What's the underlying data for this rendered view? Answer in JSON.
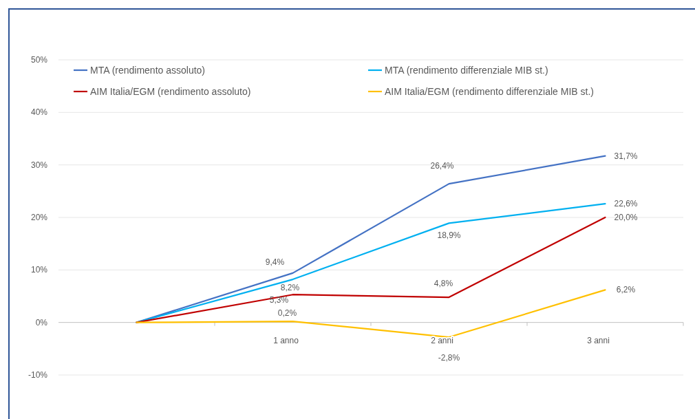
{
  "chart_data": {
    "type": "line",
    "categories": [
      null,
      "1 anno",
      "2 anni",
      "3 anni"
    ],
    "ylim": [
      -10,
      50
    ],
    "yticks": [
      {
        "value": -10,
        "label": "-10%"
      },
      {
        "value": 0,
        "label": "0%"
      },
      {
        "value": 10,
        "label": "10%"
      },
      {
        "value": 20,
        "label": "20%"
      },
      {
        "value": 30,
        "label": "30%"
      },
      {
        "value": 40,
        "label": "40%"
      },
      {
        "value": 50,
        "label": "50%"
      }
    ],
    "grid": "y",
    "legend": "top",
    "marker": "none",
    "line_style": "solid",
    "series": [
      {
        "name": "MTA (rendimento assoluto)",
        "color": "#4472c4",
        "values": [
          0,
          9.4,
          26.4,
          31.7
        ],
        "value_labels": [
          null,
          "9,4%",
          "26,4%",
          "31,7%"
        ]
      },
      {
        "name": "MTA (rendimento differenziale MIB st.)",
        "color": "#00b0f0",
        "values": [
          0,
          8.2,
          18.9,
          22.6
        ],
        "value_labels": [
          null,
          "8,2%",
          "18,9%",
          "22,6%"
        ]
      },
      {
        "name": "AIM Italia/EGM (rendimento assoluto)",
        "color": "#c00000",
        "values": [
          0,
          5.3,
          4.8,
          20.0
        ],
        "value_labels": [
          null,
          "5,3%",
          "4,8%",
          "20,0%"
        ]
      },
      {
        "name": "AIM Italia/EGM (rendimento differenziale MIB st.)",
        "color": "#ffc000",
        "values": [
          0,
          0.2,
          -2.8,
          6.2
        ],
        "value_labels": [
          null,
          "0,2%",
          "-2,8%",
          "6,2%"
        ]
      }
    ]
  }
}
